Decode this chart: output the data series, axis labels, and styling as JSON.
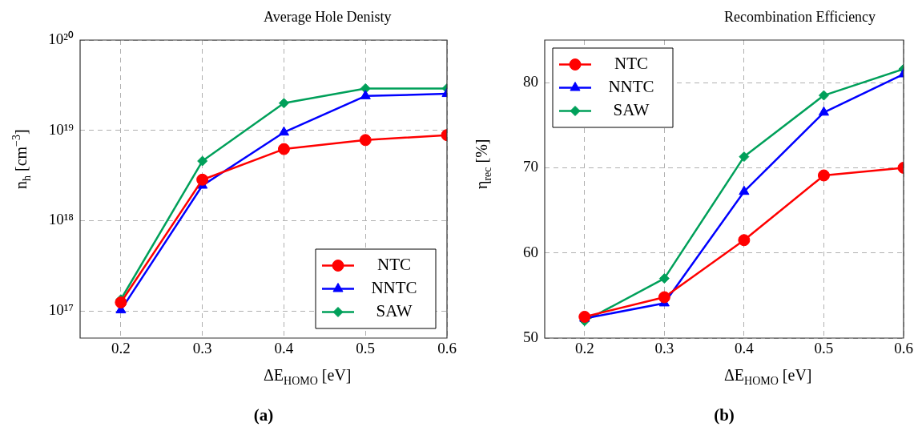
{
  "chart_data": [
    {
      "type": "line",
      "title": "Average Hole Denisty",
      "xlabel": "ΔE$_{HOMO}$ [eV]",
      "ylabel": "n$_{h}$ [cm$^{−3}$]",
      "annotations": [
        "(a)"
      ],
      "x": [
        0.2,
        0.3,
        0.4,
        0.5,
        0.6
      ],
      "series": [
        {
          "name": "NTC",
          "color": "#ff0000",
          "marker": "circle",
          "values": [
            1.24e+17,
            2.84e+18,
            6.2e+18,
            7.8e+18,
            8.85e+18
          ]
        },
        {
          "name": "NNTC",
          "color": "#0000ff",
          "marker": "triangle",
          "values": [
            1.02e+17,
            2.45e+18,
            9.5e+18,
            2.4e+19,
            2.54e+19
          ]
        },
        {
          "name": "SAW",
          "color": "#00a05a",
          "marker": "diamond",
          "values": [
            1.34e+17,
            4.57e+18,
            2e+19,
            2.91e+19,
            2.91e+19
          ]
        }
      ],
      "log": "y",
      "xlim": [
        0.15,
        0.6
      ],
      "xticks": [
        0.2,
        0.3,
        0.4,
        0.5,
        0.6
      ],
      "ylim": [
        5e+16,
        1e+20
      ],
      "yticks": [
        {
          "value": 1e+17,
          "label": "10¹⁷"
        },
        {
          "value": 1e+18,
          "label": "10¹⁸"
        },
        {
          "value": 1e+19,
          "label": "10¹⁹"
        },
        {
          "value": 1e+20,
          "label": "10²⁰"
        }
      ],
      "grid": true,
      "legend": "bottom right",
      "line_style": "solid"
    },
    {
      "type": "line",
      "title": "Recombination Efficiency",
      "xlabel": "ΔE$_{HOMO}$ [eV]",
      "ylabel": "η$_{rec}$ [%]",
      "annotations": [
        "(b)"
      ],
      "x": [
        0.2,
        0.3,
        0.4,
        0.5,
        0.6
      ],
      "series": [
        {
          "name": "NTC",
          "color": "#ff0000",
          "marker": "circle",
          "values": [
            52.5,
            54.8,
            61.5,
            69.1,
            70.0
          ]
        },
        {
          "name": "NNTC",
          "color": "#0000ff",
          "marker": "triangle",
          "values": [
            52.3,
            54.1,
            67.2,
            76.5,
            81.0
          ]
        },
        {
          "name": "SAW",
          "color": "#00a05a",
          "marker": "diamond",
          "values": [
            52.0,
            57.0,
            71.3,
            78.5,
            81.6
          ]
        }
      ],
      "xlim": [
        0.15,
        0.6
      ],
      "xticks": [
        0.2,
        0.3,
        0.4,
        0.5,
        0.6
      ],
      "ylim": [
        50,
        85
      ],
      "yticks": [
        50,
        60,
        70,
        80
      ],
      "grid": true,
      "legend": "top left",
      "line_style": "solid"
    }
  ]
}
